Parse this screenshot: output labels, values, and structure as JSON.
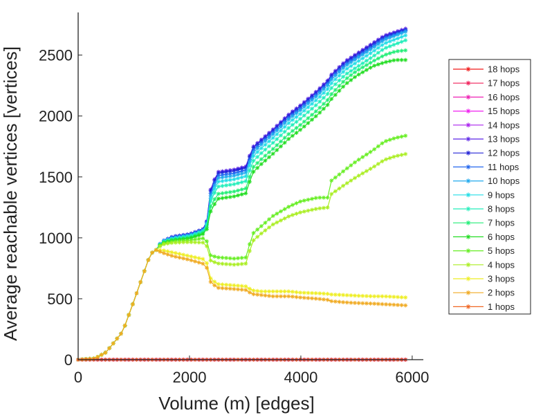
{
  "chart_data": {
    "type": "line",
    "title": "",
    "xlabel": "Volume (m) [edges]",
    "ylabel": "Average reachable vertices [vertices]",
    "xlim": [
      0,
      6200
    ],
    "ylim": [
      0,
      2850
    ],
    "xticks": [
      0,
      2000,
      4000,
      6000
    ],
    "yticks": [
      0,
      500,
      1000,
      1500,
      2000,
      2500
    ],
    "xtick_labels": [
      "0",
      "2000",
      "4000",
      "6000"
    ],
    "ytick_labels": [
      "0",
      "500",
      "1000",
      "1500",
      "2000",
      "2500"
    ],
    "marker": "asterisk",
    "legend_position": "right",
    "x": [
      0,
      300,
      500,
      800,
      1000,
      1300,
      1400,
      1500,
      1700,
      2000,
      2300,
      2350,
      2500,
      2800,
      3050,
      3100,
      3300,
      3500,
      3800,
      4000,
      4300,
      4500,
      4550,
      4800,
      5000,
      5300,
      5500,
      5700,
      5900
    ],
    "series": [
      {
        "name": "18 hops",
        "color": "#f01818",
        "values": [
          0,
          0,
          0,
          0,
          0,
          0,
          0,
          0,
          0,
          0,
          0,
          0,
          0,
          0,
          0,
          0,
          0,
          0,
          0,
          0,
          0,
          0,
          0,
          0,
          0,
          0,
          0,
          0,
          0
        ]
      },
      {
        "name": "17 hops",
        "color": "#f0205a",
        "values": [
          0,
          0,
          0,
          0,
          0,
          0,
          0,
          0,
          0,
          0,
          0,
          0,
          0,
          0,
          0,
          0,
          0,
          0,
          0,
          0,
          0,
          0,
          0,
          0,
          0,
          0,
          0,
          0,
          0
        ]
      },
      {
        "name": "16 hops",
        "color": "#ee22b4",
        "values": [
          0,
          0,
          0,
          0,
          0,
          0,
          0,
          0,
          0,
          0,
          0,
          0,
          0,
          0,
          0,
          0,
          0,
          0,
          0,
          0,
          0,
          0,
          0,
          0,
          0,
          0,
          0,
          0,
          0
        ]
      },
      {
        "name": "15 hops",
        "color": "#f020f0",
        "values": [
          0,
          0,
          0,
          0,
          0,
          0,
          0,
          0,
          0,
          0,
          0,
          0,
          0,
          0,
          0,
          0,
          0,
          0,
          0,
          0,
          0,
          0,
          0,
          0,
          0,
          0,
          0,
          0,
          0
        ]
      },
      {
        "name": "14 hops",
        "color": "#aa22ee",
        "values": [
          0,
          0,
          0,
          0,
          0,
          0,
          0,
          0,
          0,
          0,
          0,
          0,
          0,
          0,
          0,
          0,
          0,
          0,
          0,
          0,
          0,
          0,
          0,
          0,
          0,
          0,
          0,
          0,
          0
        ]
      },
      {
        "name": "13 hops",
        "color": "#5a22e6",
        "values": [
          0,
          10,
          60,
          230,
          480,
          870,
          900,
          970,
          1010,
          1030,
          1080,
          1360,
          1540,
          1560,
          1590,
          1730,
          1810,
          1890,
          2020,
          2090,
          2210,
          2300,
          2340,
          2450,
          2510,
          2600,
          2660,
          2690,
          2720
        ]
      },
      {
        "name": "12 hops",
        "color": "#2222d6",
        "values": [
          0,
          10,
          60,
          230,
          480,
          870,
          900,
          970,
          1010,
          1030,
          1080,
          1350,
          1530,
          1550,
          1580,
          1720,
          1800,
          1880,
          2010,
          2080,
          2200,
          2290,
          2330,
          2440,
          2500,
          2590,
          2650,
          2680,
          2710
        ]
      },
      {
        "name": "11 hops",
        "color": "#2266ee",
        "values": [
          0,
          10,
          60,
          230,
          480,
          870,
          900,
          970,
          1005,
          1025,
          1075,
          1330,
          1510,
          1530,
          1560,
          1700,
          1785,
          1865,
          1995,
          2065,
          2185,
          2275,
          2315,
          2425,
          2485,
          2575,
          2640,
          2670,
          2705
        ]
      },
      {
        "name": "10 hops",
        "color": "#22aaee",
        "values": [
          0,
          10,
          60,
          230,
          480,
          870,
          900,
          970,
          1000,
          1020,
          1070,
          1310,
          1490,
          1510,
          1540,
          1680,
          1770,
          1850,
          1980,
          2050,
          2170,
          2260,
          2300,
          2410,
          2470,
          2560,
          2625,
          2660,
          2695
        ]
      },
      {
        "name": "9 hops",
        "color": "#22dde6",
        "values": [
          0,
          10,
          60,
          230,
          480,
          870,
          900,
          965,
          995,
          1015,
          1065,
          1290,
          1460,
          1480,
          1510,
          1650,
          1740,
          1820,
          1950,
          2020,
          2140,
          2230,
          2270,
          2380,
          2440,
          2530,
          2595,
          2630,
          2665
        ]
      },
      {
        "name": "8 hops",
        "color": "#22eebb",
        "values": [
          0,
          10,
          60,
          230,
          480,
          870,
          900,
          960,
          990,
          1010,
          1060,
          1270,
          1420,
          1440,
          1470,
          1610,
          1700,
          1780,
          1910,
          1980,
          2100,
          2190,
          2230,
          2340,
          2400,
          2490,
          2555,
          2590,
          2625
        ]
      },
      {
        "name": "7 hops",
        "color": "#22ee77",
        "values": [
          0,
          10,
          60,
          230,
          480,
          870,
          900,
          958,
          985,
          1000,
          1050,
          1230,
          1360,
          1380,
          1410,
          1560,
          1650,
          1730,
          1860,
          1930,
          2050,
          2140,
          2180,
          2300,
          2370,
          2450,
          2500,
          2530,
          2540
        ]
      },
      {
        "name": "6 hops",
        "color": "#22dd22",
        "values": [
          0,
          10,
          60,
          230,
          480,
          870,
          900,
          955,
          980,
          995,
          1040,
          1190,
          1320,
          1340,
          1370,
          1520,
          1610,
          1690,
          1820,
          1890,
          2010,
          2100,
          2140,
          2260,
          2330,
          2410,
          2440,
          2460,
          2460
        ]
      },
      {
        "name": "5 hops",
        "color": "#66ee22",
        "values": [
          0,
          10,
          60,
          230,
          480,
          870,
          900,
          950,
          970,
          980,
          1000,
          860,
          840,
          830,
          840,
          1020,
          1100,
          1180,
          1260,
          1300,
          1330,
          1330,
          1470,
          1560,
          1630,
          1720,
          1790,
          1820,
          1840
        ]
      },
      {
        "name": "4 hops",
        "color": "#aaee22",
        "values": [
          0,
          10,
          60,
          230,
          480,
          870,
          900,
          945,
          960,
          965,
          960,
          820,
          790,
          780,
          790,
          960,
          1040,
          1110,
          1180,
          1210,
          1240,
          1250,
          1360,
          1440,
          1500,
          1580,
          1640,
          1670,
          1690
        ]
      },
      {
        "name": "3 hops",
        "color": "#eeee22",
        "values": [
          0,
          10,
          60,
          230,
          480,
          870,
          900,
          900,
          880,
          850,
          820,
          680,
          620,
          610,
          600,
          570,
          560,
          560,
          560,
          550,
          545,
          540,
          535,
          530,
          525,
          520,
          520,
          515,
          510
        ]
      },
      {
        "name": "2 hops",
        "color": "#f0aa22",
        "values": [
          0,
          10,
          60,
          230,
          480,
          870,
          900,
          880,
          850,
          820,
          780,
          650,
          590,
          580,
          570,
          540,
          530,
          520,
          520,
          510,
          500,
          490,
          480,
          470,
          465,
          460,
          455,
          450,
          445
        ]
      },
      {
        "name": "1 hops",
        "color": "#f06622",
        "values": [
          0,
          0,
          0,
          0,
          0,
          0,
          0,
          0,
          0,
          0,
          0,
          0,
          0,
          0,
          0,
          0,
          0,
          0,
          0,
          0,
          0,
          0,
          0,
          0,
          0,
          0,
          0,
          0,
          0
        ]
      }
    ]
  }
}
